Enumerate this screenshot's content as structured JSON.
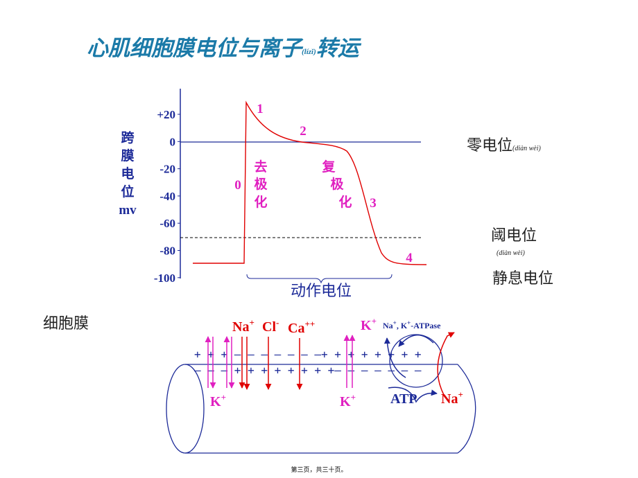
{
  "title": {
    "main": "心肌细胞膜电位与离子",
    "pinyin": "(lízǐ)",
    "tail": "转运"
  },
  "graph": {
    "y_axis_label": [
      "跨",
      "膜",
      "电",
      "位",
      "mv"
    ],
    "y_ticks": [
      "+20",
      "0",
      "-20",
      "-40",
      "-60",
      "-80",
      "-100"
    ],
    "phase_labels": [
      "0",
      "1",
      "2",
      "3",
      "4"
    ],
    "depolarization": [
      "去",
      "极",
      "化"
    ],
    "repolarization": [
      "复",
      "极",
      "化"
    ],
    "brace_label": "动作电位"
  },
  "annotations": {
    "zero": "零电位",
    "zero_pinyin": "(diàn wèi)",
    "threshold": "阈电位",
    "threshold_pinyin": "(diàn wèi)",
    "resting": "静息电位"
  },
  "membrane": {
    "label": "细胞膜",
    "outer_charges": "+  + +  —  —  —  —  —  —  —+ +  + + + + + +",
    "inner_charges": "—  —  —  +  +  +  +  + + +  +—  —  — — — — —",
    "ions_top": [
      {
        "text": "Na",
        "sup": "+"
      },
      {
        "text": "Cl",
        "sup": "-"
      },
      {
        "text": "Ca",
        "sup": "++"
      },
      {
        "text": "K",
        "sup": "+"
      }
    ],
    "pump_label": [
      "Na",
      "+",
      ", K",
      "+",
      "-ATPase"
    ],
    "ions_bottom": [
      {
        "text": "K",
        "sup": "+"
      },
      {
        "text": "K",
        "sup": "+"
      },
      {
        "text": "ATP"
      },
      {
        "text": "Na",
        "sup": "+"
      }
    ]
  },
  "footer": "第三页，共三十页。"
}
